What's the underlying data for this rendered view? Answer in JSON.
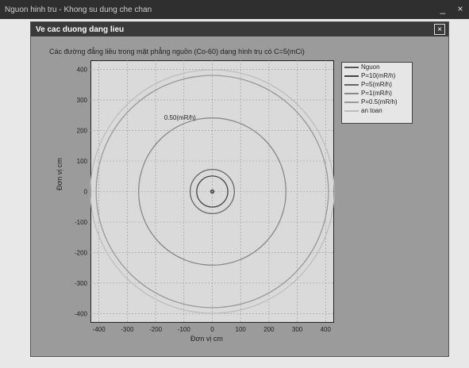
{
  "outer_window": {
    "title": "Nguon hinh tru - Khong su dung che chan",
    "controls": [
      "_",
      "×"
    ]
  },
  "inner_window": {
    "title": "Ve cac duong dang lieu",
    "close_label": "×"
  },
  "chart_data": {
    "type": "contour",
    "title": "Các đường đẳng liều trong mặt phẳng nguồn (Co-60) dạng hình trụ có C=5(mCi)",
    "xlabel": "Đơn vị cm",
    "ylabel": "Đơn vị cm",
    "xlim": [
      -430,
      430
    ],
    "ylim": [
      -430,
      430
    ],
    "xticks": [
      -400,
      -300,
      -200,
      -100,
      0,
      100,
      200,
      300,
      400
    ],
    "yticks": [
      400,
      300,
      200,
      100,
      0,
      -100,
      -200,
      -300,
      -400
    ],
    "grid": true,
    "legend_position": "right",
    "series": [
      {
        "name": "Nguon",
        "radius_cm": 5,
        "color": "#555555"
      },
      {
        "name": "P=10(mR/h)",
        "radius_cm": 55,
        "color": "#444444"
      },
      {
        "name": "P=5(mR/h)",
        "radius_cm": 78,
        "color": "#666666"
      },
      {
        "name": "P=1(mR/h)",
        "radius_cm": 260,
        "color": "#888888"
      },
      {
        "name": "P=0.5(mR/h)",
        "radius_cm": 410,
        "color": "#9a9a9a"
      },
      {
        "name": "an toan",
        "radius_cm": 430,
        "color": "#bdbdbd"
      }
    ],
    "annotations": [
      {
        "text": "0.50(mR/h)",
        "x": -170,
        "y": 235
      }
    ]
  }
}
